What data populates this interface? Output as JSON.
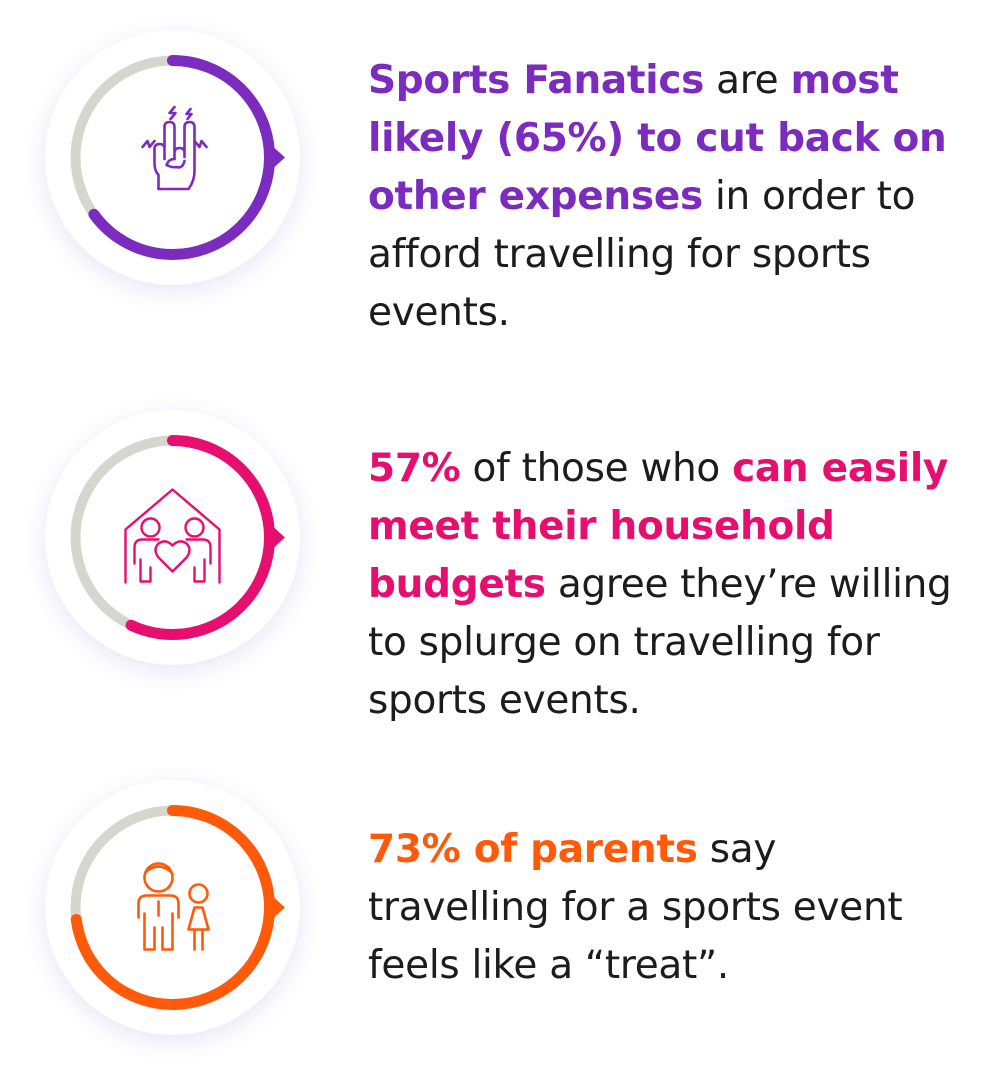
{
  "stats": [
    {
      "icon": "rock-hand-icon",
      "color": "#7b2cbf",
      "fraction": 0.65,
      "parts": [
        {
          "text": "Sports Fanatics",
          "highlight": true
        },
        {
          "text": " are ",
          "highlight": false
        },
        {
          "text": "most likely (65%) to cut back on other expenses",
          "highlight": true
        },
        {
          "text": " in order to afford travelling for sports events.",
          "highlight": false
        }
      ]
    },
    {
      "icon": "family-house-heart-icon",
      "color": "#e60e6e",
      "fraction": 0.57,
      "parts": [
        {
          "text": "57%",
          "highlight": true
        },
        {
          "text": " of those who ",
          "highlight": false
        },
        {
          "text": "can easily meet their household budgets",
          "highlight": true
        },
        {
          "text": " agree they’re willing to splurge on travelling for sports events.",
          "highlight": false
        }
      ]
    },
    {
      "icon": "parent-child-icon",
      "color": "#ff5a0a",
      "fraction": 0.73,
      "parts": [
        {
          "text": "73% of parents",
          "highlight": true
        },
        {
          "text": " say travelling for a sports event feels like a “treat”.",
          "highlight": false
        }
      ]
    }
  ]
}
